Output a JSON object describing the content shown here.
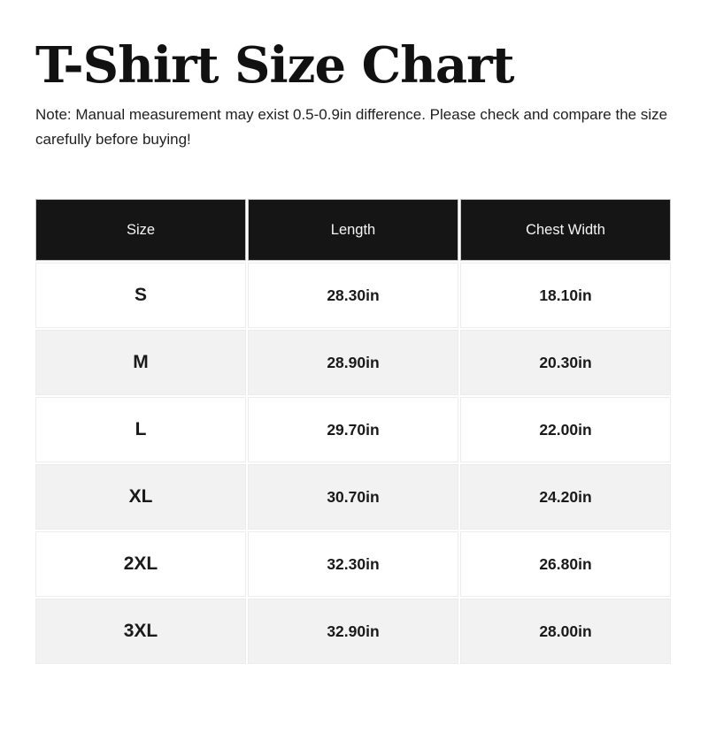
{
  "page": {
    "title": "T-Shirt Size Chart",
    "note": "Note: Manual measurement may exist 0.5-0.9in difference. Please check and compare the size carefully before buying!"
  },
  "table": {
    "columns": [
      "Size",
      "Length",
      "Chest Width"
    ],
    "rows": [
      {
        "size": "S",
        "length": "28.30in",
        "chest_width": "18.10in"
      },
      {
        "size": "M",
        "length": "28.90in",
        "chest_width": "20.30in"
      },
      {
        "size": "L",
        "length": "29.70in",
        "chest_width": "22.00in"
      },
      {
        "size": "XL",
        "length": "30.70in",
        "chest_width": "24.20in"
      },
      {
        "size": "2XL",
        "length": "32.30in",
        "chest_width": "26.80in"
      },
      {
        "size": "3XL",
        "length": "32.90in",
        "chest_width": "28.00in"
      }
    ]
  },
  "colors": {
    "header_bg": "#151515",
    "header_text": "#f5f5f5",
    "row_alt_bg": "#f2f2f2",
    "row_bg": "#ffffff",
    "text": "#1a1a1a"
  }
}
